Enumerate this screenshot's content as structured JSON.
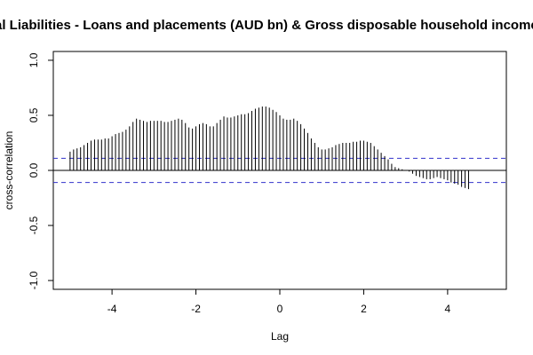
{
  "chart_data": {
    "type": "bar",
    "title": "al Liabilities - Loans and placements (AUD bn) & Gross disposable household income (A",
    "xlabel": "Lag",
    "ylabel": "cross-correlation",
    "xlim": [
      -5.4,
      5.4
    ],
    "ylim": [
      -1.08,
      1.08
    ],
    "x_ticks": [
      -4,
      -2,
      0,
      2,
      4
    ],
    "x_tick_labels": [
      "-4",
      "-2",
      "0",
      "2",
      "4"
    ],
    "y_ticks": [
      -1.0,
      -0.5,
      0.0,
      0.5,
      1.0
    ],
    "y_tick_labels": [
      "-1.0",
      "-0.5",
      "0.0",
      "0.5",
      "1.0"
    ],
    "confidence_band": 0.11,
    "lag_start": -5.0,
    "lag_step": 0.08333,
    "values": [
      0.17,
      0.19,
      0.2,
      0.21,
      0.23,
      0.25,
      0.27,
      0.28,
      0.28,
      0.28,
      0.29,
      0.29,
      0.31,
      0.33,
      0.34,
      0.35,
      0.37,
      0.4,
      0.44,
      0.47,
      0.46,
      0.45,
      0.44,
      0.45,
      0.45,
      0.45,
      0.45,
      0.44,
      0.44,
      0.45,
      0.46,
      0.47,
      0.46,
      0.43,
      0.39,
      0.38,
      0.4,
      0.42,
      0.43,
      0.42,
      0.4,
      0.4,
      0.43,
      0.46,
      0.49,
      0.48,
      0.48,
      0.49,
      0.5,
      0.51,
      0.51,
      0.52,
      0.54,
      0.56,
      0.57,
      0.58,
      0.58,
      0.57,
      0.55,
      0.53,
      0.5,
      0.47,
      0.46,
      0.46,
      0.47,
      0.45,
      0.42,
      0.38,
      0.34,
      0.29,
      0.25,
      0.21,
      0.19,
      0.19,
      0.2,
      0.21,
      0.23,
      0.24,
      0.25,
      0.25,
      0.25,
      0.26,
      0.26,
      0.27,
      0.27,
      0.26,
      0.25,
      0.22,
      0.19,
      0.16,
      0.13,
      0.1,
      0.06,
      0.03,
      0.02,
      0.01,
      0.0,
      -0.01,
      -0.03,
      -0.05,
      -0.06,
      -0.07,
      -0.08,
      -0.08,
      -0.07,
      -0.06,
      -0.07,
      -0.08,
      -0.09,
      -0.11,
      -0.12,
      -0.13,
      -0.15,
      -0.16,
      -0.17
    ]
  }
}
